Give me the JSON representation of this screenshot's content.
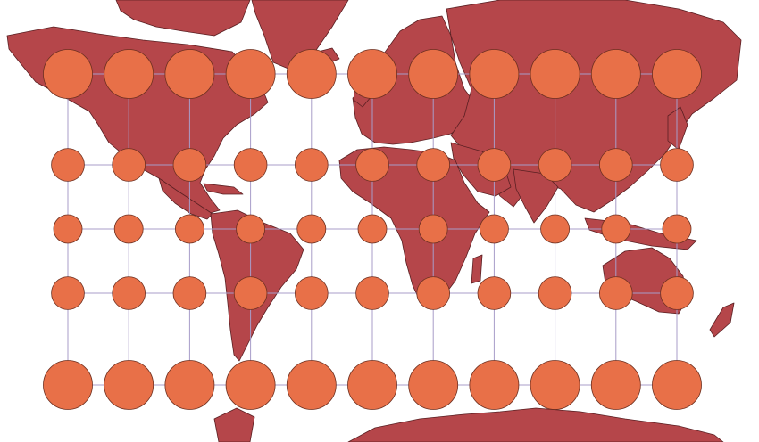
{
  "map": {
    "projection": "mercator",
    "land_color": "#b5464a",
    "border_color": "#5a1f22",
    "ocean_color": "#ffffff",
    "graticule_color": "#a89cc8",
    "indicatrix_color": "#e87048",
    "indicatrix_stroke": "#6e3020",
    "indicatrix_longitudes": [
      -150,
      -120,
      -90,
      -60,
      -30,
      0,
      30,
      60,
      90,
      120,
      150
    ],
    "indicatrix_latitudes": [
      60,
      30,
      0,
      -30,
      -60
    ],
    "indicatrix_relative_scale": [
      2.0,
      1.15,
      1.0,
      1.15,
      2.0
    ]
  }
}
